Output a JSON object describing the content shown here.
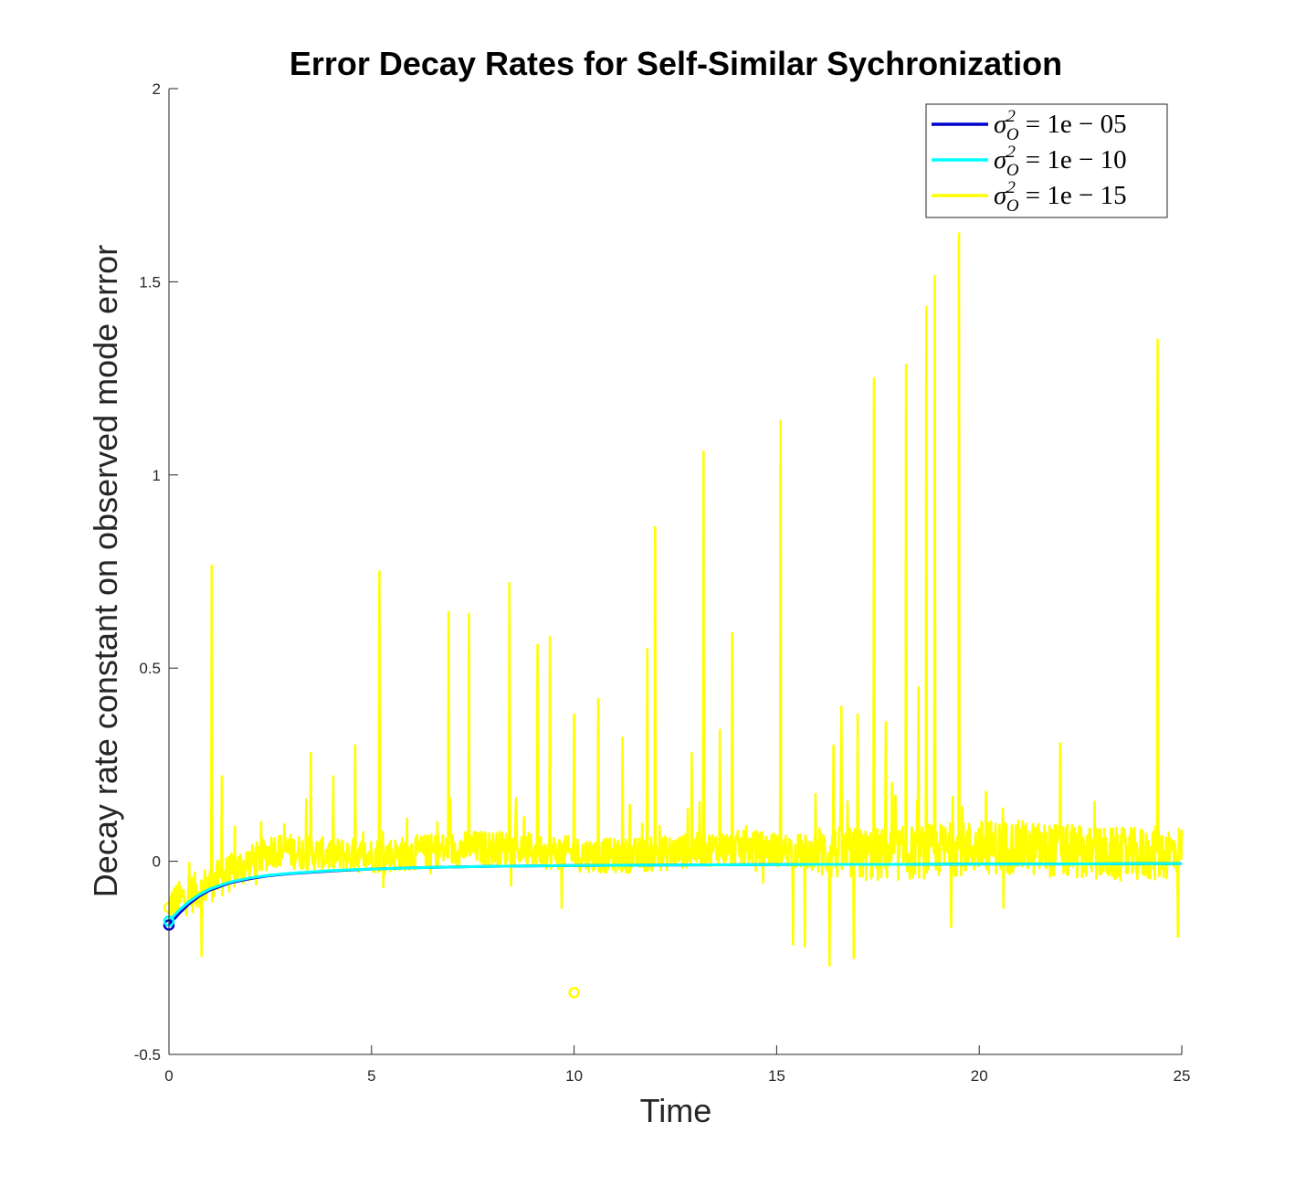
{
  "chart_data": {
    "type": "line",
    "title": "Error Decay Rates for Self-Similar Sychronization",
    "xlabel": "Time",
    "ylabel": "Decay rate constant on observed mode error",
    "xlim": [
      0,
      25
    ],
    "ylim": [
      -0.5,
      2
    ],
    "xticks": [
      "0",
      "5",
      "10",
      "15",
      "20",
      "25"
    ],
    "yticks": [
      "-0.5",
      "0",
      "0.5",
      "1",
      "1.5",
      "2"
    ],
    "grid": false,
    "legend_position": "top-right",
    "series": [
      {
        "name": "σ_O^2 = 1e−05",
        "legend_text": {
          "sigma": "σ",
          "sup": "2",
          "sub": "O",
          "rest": " = 1e − 05"
        },
        "color": "#0000cd",
        "x": [
          0,
          0.25,
          0.5,
          0.75,
          1,
          1.5,
          2,
          2.5,
          3,
          4,
          5,
          6,
          7,
          8,
          10,
          12,
          14,
          16,
          18,
          20,
          22,
          25
        ],
        "y": [
          -0.165,
          -0.135,
          -0.11,
          -0.09,
          -0.075,
          -0.056,
          -0.045,
          -0.037,
          -0.032,
          -0.025,
          -0.02,
          -0.017,
          -0.015,
          -0.013,
          -0.011,
          -0.01,
          -0.009,
          -0.008,
          -0.008,
          -0.007,
          -0.007,
          -0.006
        ],
        "markers": [
          {
            "x": 0,
            "y": -0.165
          }
        ]
      },
      {
        "name": "σ_O^2 = 1e−10",
        "legend_text": {
          "sigma": "σ",
          "sup": "2",
          "sub": "O",
          "rest": " = 1e − 10"
        },
        "color": "#00ffff",
        "x": [
          0,
          0.25,
          0.5,
          0.75,
          1,
          1.5,
          2,
          2.5,
          3,
          4,
          5,
          6,
          7,
          8,
          10,
          12,
          14,
          16,
          18,
          20,
          22,
          25
        ],
        "y": [
          -0.155,
          -0.127,
          -0.104,
          -0.086,
          -0.072,
          -0.054,
          -0.043,
          -0.036,
          -0.031,
          -0.024,
          -0.02,
          -0.017,
          -0.015,
          -0.013,
          -0.011,
          -0.01,
          -0.009,
          -0.008,
          -0.008,
          -0.007,
          -0.007,
          -0.006
        ],
        "markers": [
          {
            "x": 0,
            "y": -0.155
          }
        ]
      },
      {
        "name": "σ_O^2 = 1e−15",
        "legend_text": {
          "sigma": "σ",
          "sup": "2",
          "sub": "O",
          "rest": " = 1e − 15"
        },
        "color": "#ffff00",
        "spikes": [
          {
            "x": 1.05,
            "y": 0.765
          },
          {
            "x": 1.3,
            "y": 0.22
          },
          {
            "x": 0.8,
            "y": -0.245
          },
          {
            "x": 3.5,
            "y": 0.28
          },
          {
            "x": 4.6,
            "y": 0.3
          },
          {
            "x": 5.2,
            "y": 0.75
          },
          {
            "x": 6.9,
            "y": 0.645
          },
          {
            "x": 7.4,
            "y": 0.64
          },
          {
            "x": 8.4,
            "y": 0.72
          },
          {
            "x": 9.1,
            "y": 0.56
          },
          {
            "x": 9.4,
            "y": 0.58
          },
          {
            "x": 9.7,
            "y": -0.12
          },
          {
            "x": 10.0,
            "y": 0.38
          },
          {
            "x": 10.6,
            "y": 0.42
          },
          {
            "x": 11.2,
            "y": 0.32
          },
          {
            "x": 11.8,
            "y": 0.55
          },
          {
            "x": 12.0,
            "y": 0.865
          },
          {
            "x": 12.9,
            "y": 0.28
          },
          {
            "x": 13.2,
            "y": 1.06
          },
          {
            "x": 13.6,
            "y": 0.34
          },
          {
            "x": 13.9,
            "y": 0.59
          },
          {
            "x": 15.1,
            "y": 1.14
          },
          {
            "x": 15.4,
            "y": -0.215
          },
          {
            "x": 15.7,
            "y": -0.22
          },
          {
            "x": 16.3,
            "y": -0.27
          },
          {
            "x": 16.4,
            "y": 0.3
          },
          {
            "x": 16.6,
            "y": 0.4
          },
          {
            "x": 17.0,
            "y": 0.38
          },
          {
            "x": 16.9,
            "y": -0.25
          },
          {
            "x": 17.4,
            "y": 1.25
          },
          {
            "x": 17.7,
            "y": 0.36
          },
          {
            "x": 18.2,
            "y": 1.285
          },
          {
            "x": 18.5,
            "y": 0.45
          },
          {
            "x": 18.7,
            "y": 1.435
          },
          {
            "x": 18.9,
            "y": 1.515
          },
          {
            "x": 19.3,
            "y": 0.38
          },
          {
            "x": 19.5,
            "y": 1.625
          },
          {
            "x": 19.3,
            "y": -0.17
          },
          {
            "x": 20.6,
            "y": -0.12
          },
          {
            "x": 22.0,
            "y": 0.305
          },
          {
            "x": 24.4,
            "y": 1.35
          },
          {
            "x": 24.9,
            "y": -0.195
          }
        ],
        "markers": [
          {
            "x": 0,
            "y": -0.12
          },
          {
            "x": 10.0,
            "y": -0.34
          }
        ]
      }
    ]
  }
}
